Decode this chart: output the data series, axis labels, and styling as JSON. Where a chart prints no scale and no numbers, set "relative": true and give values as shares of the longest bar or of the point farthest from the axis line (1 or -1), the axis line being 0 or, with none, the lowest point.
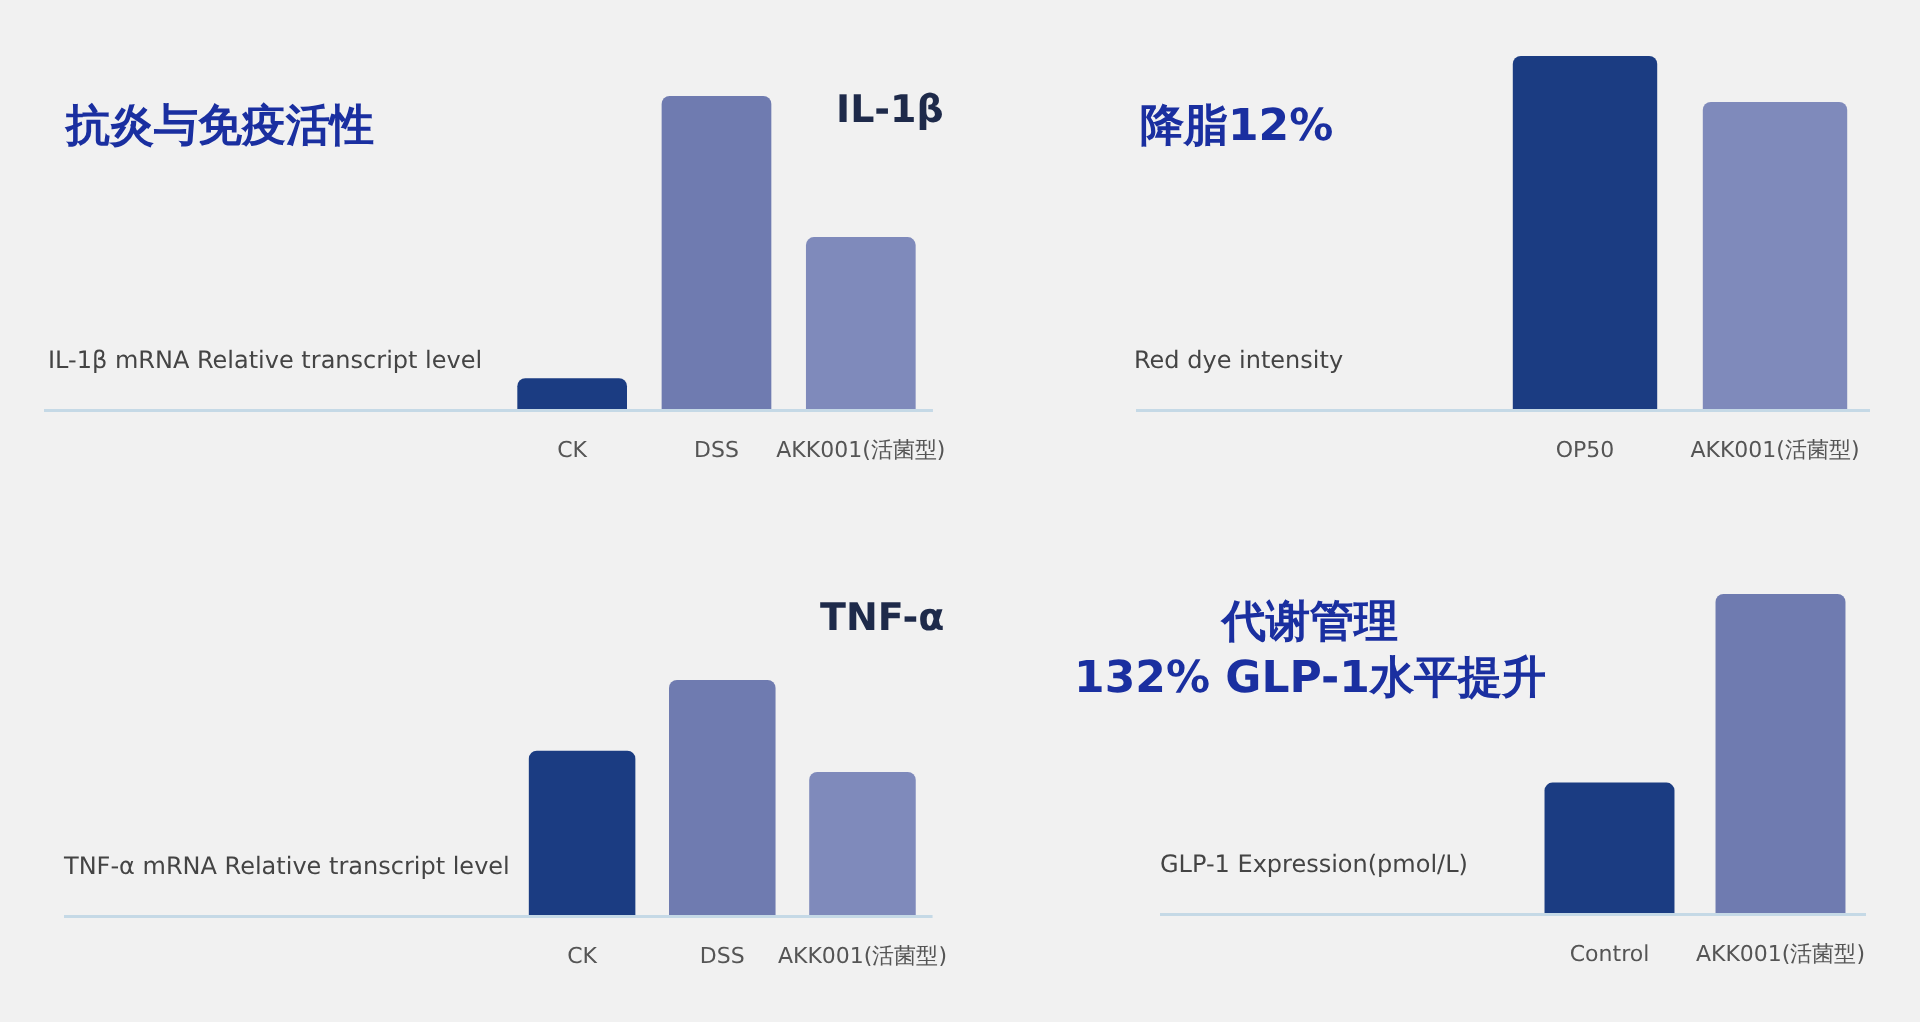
{
  "chart_data": [
    {
      "type": "bar",
      "title": "抗炎与免疫活性",
      "subtitle": "IL-1β",
      "ylabel": "IL-1β mRNA Relative transcript level",
      "categories": [
        "CK",
        "DSS",
        "AKK001(活菌型)"
      ],
      "values": [
        0.1,
        1,
        0.55
      ],
      "colors": [
        "#1b3c82",
        "#6f7bb0",
        "#7f8abb"
      ],
      "relative": true
    },
    {
      "type": "bar",
      "title": "降脂12%",
      "ylabel": "Red dye intensity",
      "categories": [
        "OP50",
        "AKK001(活菌型)"
      ],
      "values": [
        1,
        0.87
      ],
      "colors": [
        "#1b3c82",
        "#7f8abb"
      ],
      "relative": true
    },
    {
      "type": "bar",
      "subtitle": "TNF-α",
      "ylabel": "TNF-α mRNA Relative transcript level",
      "categories": [
        "CK",
        "DSS",
        "AKK001(活菌型)"
      ],
      "values": [
        0.7,
        1,
        0.61
      ],
      "colors": [
        "#1b3c82",
        "#6f7bb0",
        "#7f8abb"
      ],
      "relative": true
    },
    {
      "type": "bar",
      "title": "代谢管理\n132% GLP-1水平提升",
      "ylabel": "GLP-1 Expression(pmol/L)",
      "categories": [
        "Control",
        "AKK001(活菌型)"
      ],
      "values": [
        0.41,
        1
      ],
      "colors": [
        "#1b3c82",
        "#6f7bb0"
      ],
      "relative": true
    }
  ]
}
